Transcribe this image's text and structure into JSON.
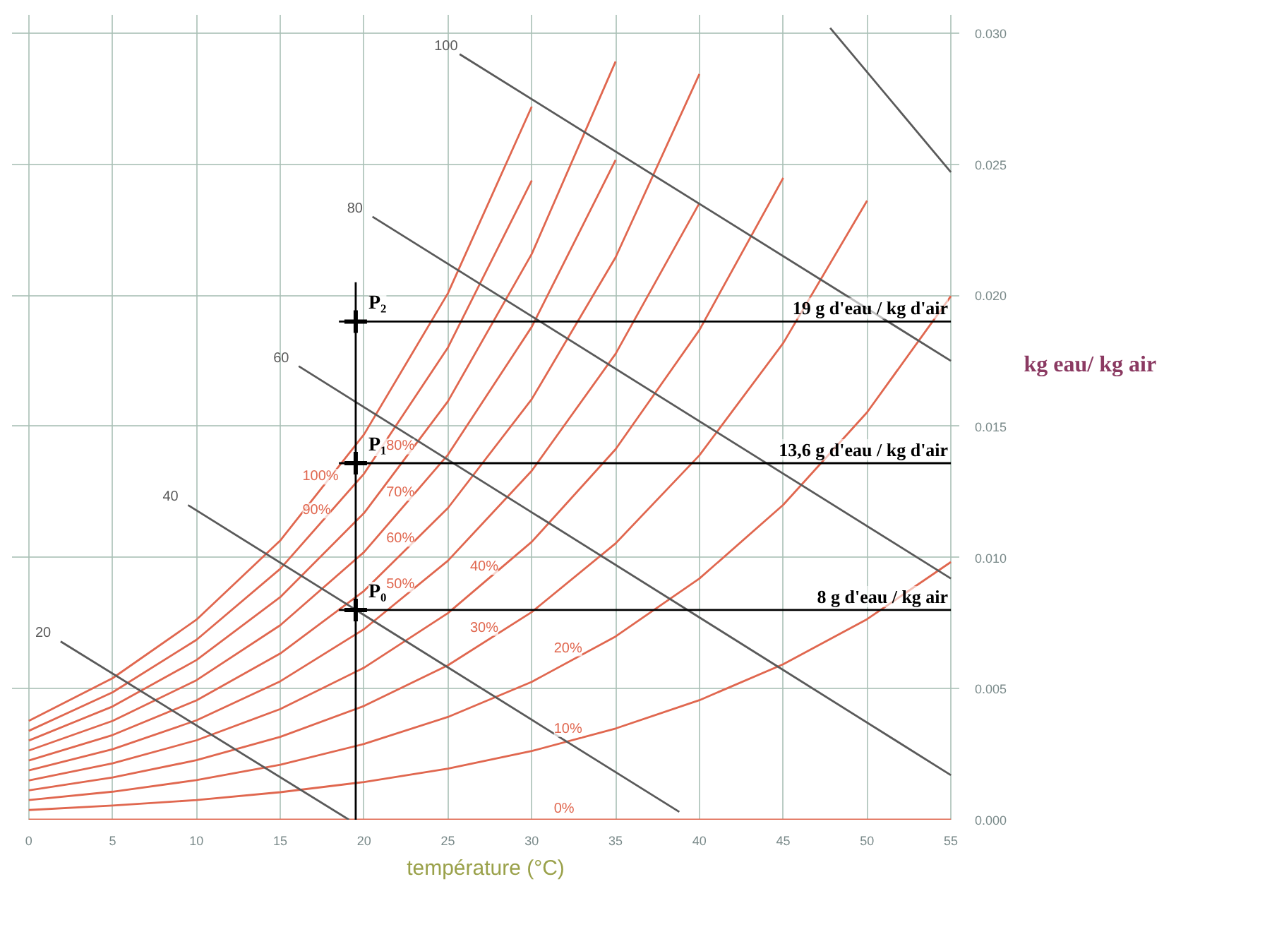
{
  "chart_data": {
    "type": "line",
    "xlabel": "température (°C)",
    "ylabel": "kg eau/ kg air",
    "x": [
      0,
      5,
      10,
      15,
      20,
      25,
      30,
      35,
      40,
      45,
      50,
      55
    ],
    "xlim": [
      -1,
      55.5
    ],
    "ylim": [
      0,
      0.0307
    ],
    "xticks": [
      0,
      5,
      10,
      15,
      20,
      25,
      30,
      35,
      40,
      45,
      50,
      55
    ],
    "yticks": [
      {
        "value": 0,
        "label": "0.000"
      },
      {
        "value": 0.005,
        "label": "0.005"
      },
      {
        "value": 0.01,
        "label": "0.010"
      },
      {
        "value": 0.015,
        "label": "0.015"
      },
      {
        "value": 0.02,
        "label": "0.020"
      },
      {
        "value": 0.025,
        "label": "0.025"
      },
      {
        "value": 0.03,
        "label": "0.030"
      }
    ],
    "grid": true,
    "series": [
      {
        "name": "100%",
        "color": "#e0674f",
        "values": [
          0.00377,
          0.0054,
          0.00763,
          0.01065,
          0.0147,
          0.02008,
          0.0272,
          null,
          null,
          null,
          null,
          null
        ]
      },
      {
        "name": "90%",
        "color": "#e0674f",
        "values": [
          0.00339,
          0.00486,
          0.00686,
          0.00957,
          0.0132,
          0.01801,
          0.02438,
          null,
          null,
          null,
          null,
          null
        ]
      },
      {
        "name": "80%",
        "color": "#e0674f",
        "values": [
          0.00302,
          0.00432,
          0.00609,
          0.00849,
          0.0117,
          0.01596,
          0.02158,
          0.02892,
          null,
          null,
          null,
          null
        ]
      },
      {
        "name": "70%",
        "color": "#e0674f",
        "values": [
          0.00264,
          0.00377,
          0.00532,
          0.00742,
          0.01021,
          0.01392,
          0.0188,
          0.02516,
          null,
          null,
          null,
          null
        ]
      },
      {
        "name": "60%",
        "color": "#e0674f",
        "values": [
          0.00226,
          0.00323,
          0.00455,
          0.00634,
          0.00873,
          0.01189,
          0.01604,
          0.02145,
          0.02844,
          null,
          null,
          null
        ]
      },
      {
        "name": "50%",
        "color": "#e0674f",
        "values": [
          0.00188,
          0.00269,
          0.00379,
          0.00528,
          0.00727,
          0.00988,
          0.01331,
          0.01777,
          0.02352,
          null,
          null,
          null
        ]
      },
      {
        "name": "40%",
        "color": "#e0674f",
        "values": [
          0.0015,
          0.00215,
          0.00303,
          0.00422,
          0.0058,
          0.00788,
          0.0106,
          0.01413,
          0.01868,
          0.02448,
          null,
          null
        ]
      },
      {
        "name": "30%",
        "color": "#e0674f",
        "values": [
          0.00112,
          0.00161,
          0.00227,
          0.00316,
          0.00434,
          0.00589,
          0.00792,
          0.01054,
          0.0139,
          0.01818,
          0.02361,
          null
        ]
      },
      {
        "name": "20%",
        "color": "#e0674f",
        "values": [
          0.00075,
          0.00107,
          0.00151,
          0.0021,
          0.00289,
          0.00392,
          0.00526,
          0.00699,
          0.0092,
          0.01201,
          0.01554,
          0.01997
        ]
      },
      {
        "name": "10%",
        "color": "#e0674f",
        "values": [
          0.00037,
          0.00054,
          0.00075,
          0.00105,
          0.00144,
          0.00195,
          0.00262,
          0.00348,
          0.00456,
          0.00593,
          0.00765,
          0.00983
        ]
      },
      {
        "name": "0%",
        "color": "#e0674f",
        "values": [
          0,
          0,
          0,
          0,
          0,
          0,
          0,
          0,
          0,
          0,
          0,
          0
        ]
      },
      {
        "name": "20",
        "color": "#5a5a5a",
        "x": [
          1.9,
          19.1
        ],
        "values": [
          0.0068,
          0
        ]
      },
      {
        "name": "40",
        "color": "#5a5a5a",
        "x": [
          9.5,
          38.8
        ],
        "values": [
          0.012,
          0.0003
        ]
      },
      {
        "name": "60",
        "color": "#5a5a5a",
        "x": [
          16.1,
          55
        ],
        "values": [
          0.0173,
          0.0017
        ]
      },
      {
        "name": "80",
        "color": "#5a5a5a",
        "x": [
          20.5,
          55
        ],
        "values": [
          0.023,
          0.0092
        ]
      },
      {
        "name": "100",
        "color": "#5a5a5a",
        "x": [
          25.7,
          55
        ],
        "values": [
          0.0292,
          0.0175
        ]
      },
      {
        "color": "#5a5a5a",
        "x": [
          47.8,
          55
        ],
        "values": [
          0.0302,
          0.0247
        ]
      },
      {
        "color": "#000000",
        "x": [
          19.5,
          19.5
        ],
        "values": [
          0,
          0.0205
        ]
      },
      {
        "name": "19 g d'eau / kg d'air",
        "color": "#000000",
        "x": [
          18.5,
          55
        ],
        "values": [
          0.019,
          0.019
        ]
      },
      {
        "name": "13,6 g d'eau / kg d'air",
        "color": "#000000",
        "x": [
          18.5,
          55
        ],
        "values": [
          0.0136,
          0.0136
        ]
      },
      {
        "name": "8 g d'eau / kg air",
        "color": "#000000",
        "x": [
          18.5,
          55
        ],
        "values": [
          0.008,
          0.008
        ]
      },
      {
        "name": "P₀",
        "type": "scatter",
        "color": "#000000",
        "marker": "cross",
        "x": [
          19.5
        ],
        "values": [
          0.008
        ]
      },
      {
        "name": "P₁",
        "type": "scatter",
        "color": "#000000",
        "marker": "cross",
        "x": [
          19.5
        ],
        "values": [
          0.0136
        ]
      },
      {
        "name": "P₂",
        "type": "scatter",
        "color": "#000000",
        "marker": "cross",
        "x": [
          19.5
        ],
        "values": [
          0.019
        ]
      }
    ]
  }
}
